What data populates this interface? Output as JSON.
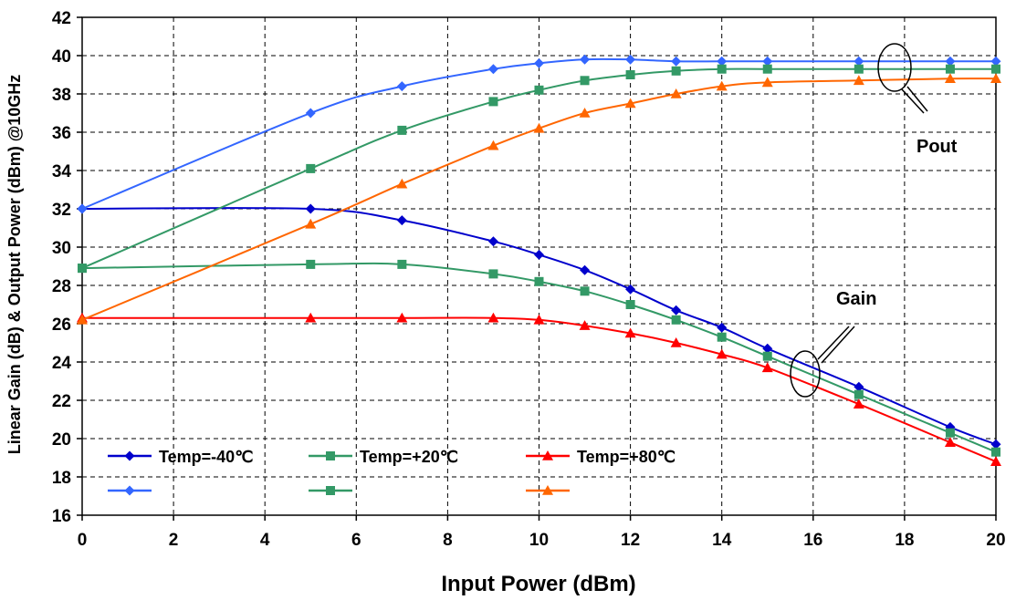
{
  "chart_data": {
    "type": "line",
    "xlabel": "Input Power (dBm)",
    "ylabel": "Linear Gain (dB) & Output Power (dBm) @10GHz",
    "xlim": [
      0,
      20
    ],
    "ylim": [
      16,
      42
    ],
    "x_ticks": [
      0,
      2,
      4,
      6,
      8,
      10,
      12,
      14,
      16,
      18,
      20
    ],
    "y_ticks": [
      16,
      18,
      20,
      22,
      24,
      26,
      28,
      30,
      32,
      34,
      36,
      38,
      40,
      42
    ],
    "grid": true,
    "legend_position": "bottom-left",
    "series": [
      {
        "name": "Temp=-40℃",
        "group": "Gain",
        "color": "#0000CC",
        "marker": "diamond",
        "x": [
          0,
          5,
          7,
          9,
          10,
          11,
          12,
          13,
          14,
          15,
          17,
          19,
          20
        ],
        "y": [
          32.0,
          32.0,
          31.4,
          30.3,
          29.6,
          28.8,
          27.8,
          26.7,
          25.8,
          24.7,
          22.7,
          20.6,
          19.7
        ]
      },
      {
        "name": "Temp=+20℃",
        "group": "Gain",
        "color": "#339966",
        "marker": "square",
        "x": [
          0,
          5,
          7,
          9,
          10,
          11,
          12,
          13,
          14,
          15,
          17,
          19,
          20
        ],
        "y": [
          28.9,
          29.1,
          29.1,
          28.6,
          28.2,
          27.7,
          27.0,
          26.2,
          25.3,
          24.3,
          22.3,
          20.3,
          19.3
        ]
      },
      {
        "name": "Temp=+80℃",
        "group": "Gain",
        "color": "#FF0000",
        "marker": "triangle",
        "x": [
          0,
          5,
          7,
          9,
          10,
          11,
          12,
          13,
          14,
          15,
          17,
          19,
          20
        ],
        "y": [
          26.3,
          26.3,
          26.3,
          26.3,
          26.2,
          25.9,
          25.5,
          25.0,
          24.4,
          23.7,
          21.8,
          19.8,
          18.8
        ]
      },
      {
        "name": "",
        "group": "Pout",
        "color": "#3366FF",
        "marker": "diamond",
        "x": [
          0,
          5,
          7,
          9,
          10,
          11,
          12,
          13,
          14,
          15,
          17,
          19,
          20
        ],
        "y": [
          32.0,
          37.0,
          38.4,
          39.3,
          39.6,
          39.8,
          39.8,
          39.7,
          39.7,
          39.7,
          39.7,
          39.7,
          39.7
        ]
      },
      {
        "name": "",
        "group": "Pout",
        "color": "#339966",
        "marker": "square",
        "x": [
          0,
          5,
          7,
          9,
          10,
          11,
          12,
          13,
          14,
          15,
          17,
          19,
          20
        ],
        "y": [
          28.9,
          34.1,
          36.1,
          37.6,
          38.2,
          38.7,
          39.0,
          39.2,
          39.3,
          39.3,
          39.3,
          39.3,
          39.3
        ]
      },
      {
        "name": "",
        "group": "Pout",
        "color": "#FF6600",
        "marker": "triangle",
        "x": [
          0,
          5,
          7,
          9,
          10,
          11,
          12,
          13,
          14,
          15,
          17,
          19,
          20
        ],
        "y": [
          26.2,
          31.2,
          33.3,
          35.3,
          36.2,
          37.0,
          37.5,
          38.0,
          38.4,
          38.6,
          38.7,
          38.8,
          38.8
        ]
      }
    ],
    "annotations": [
      {
        "text": "Pout",
        "target": "Pout"
      },
      {
        "text": "Gain",
        "target": "Gain"
      }
    ]
  }
}
